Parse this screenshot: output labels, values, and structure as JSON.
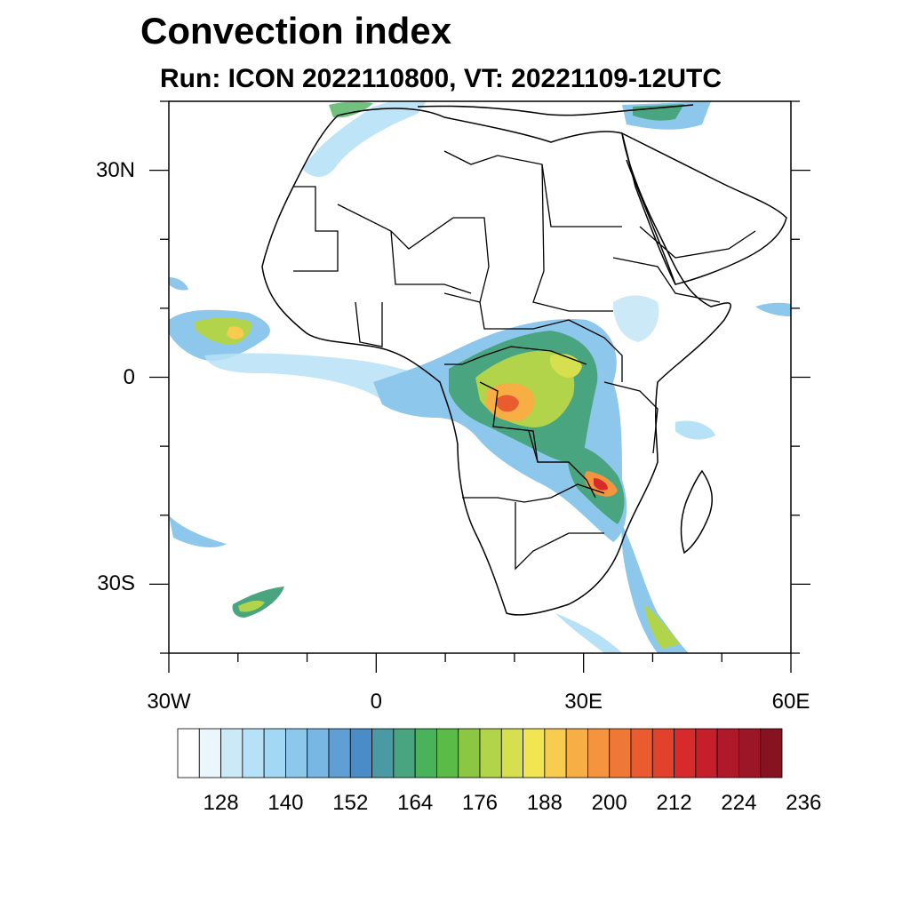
{
  "title": "Convection index",
  "subtitle": "Run: ICON 2022110800,  VT: 20221109-12UTC",
  "map": {
    "lon_range": [
      -30,
      60
    ],
    "lat_range": [
      -40,
      40
    ],
    "lat_labels": [
      "30N",
      "0",
      "30S"
    ],
    "lat_values": [
      30,
      0,
      -30
    ],
    "lon_labels": [
      "30W",
      "0",
      "30E",
      "60E"
    ],
    "lon_values": [
      -30,
      0,
      30,
      60
    ]
  },
  "colorbar": {
    "labels": [
      "128",
      "140",
      "152",
      "164",
      "176",
      "188",
      "200",
      "212",
      "224",
      "236"
    ],
    "colors": [
      "#ffffff",
      "#eaf6fc",
      "#cce9f8",
      "#b7e1f7",
      "#a3d8f5",
      "#8dc7ec",
      "#78b6e3",
      "#5f9fd6",
      "#4a8cc8",
      "#4a9aa3",
      "#48a57f",
      "#4bb25c",
      "#5abb47",
      "#8cc744",
      "#b2d44a",
      "#d6df4e",
      "#f1e652",
      "#f8cc4f",
      "#f6ae45",
      "#f4943e",
      "#ef7837",
      "#ea5c30",
      "#e2422b",
      "#d62b2a",
      "#c51f2c",
      "#b0192a",
      "#9b1626",
      "#86131f"
    ]
  }
}
